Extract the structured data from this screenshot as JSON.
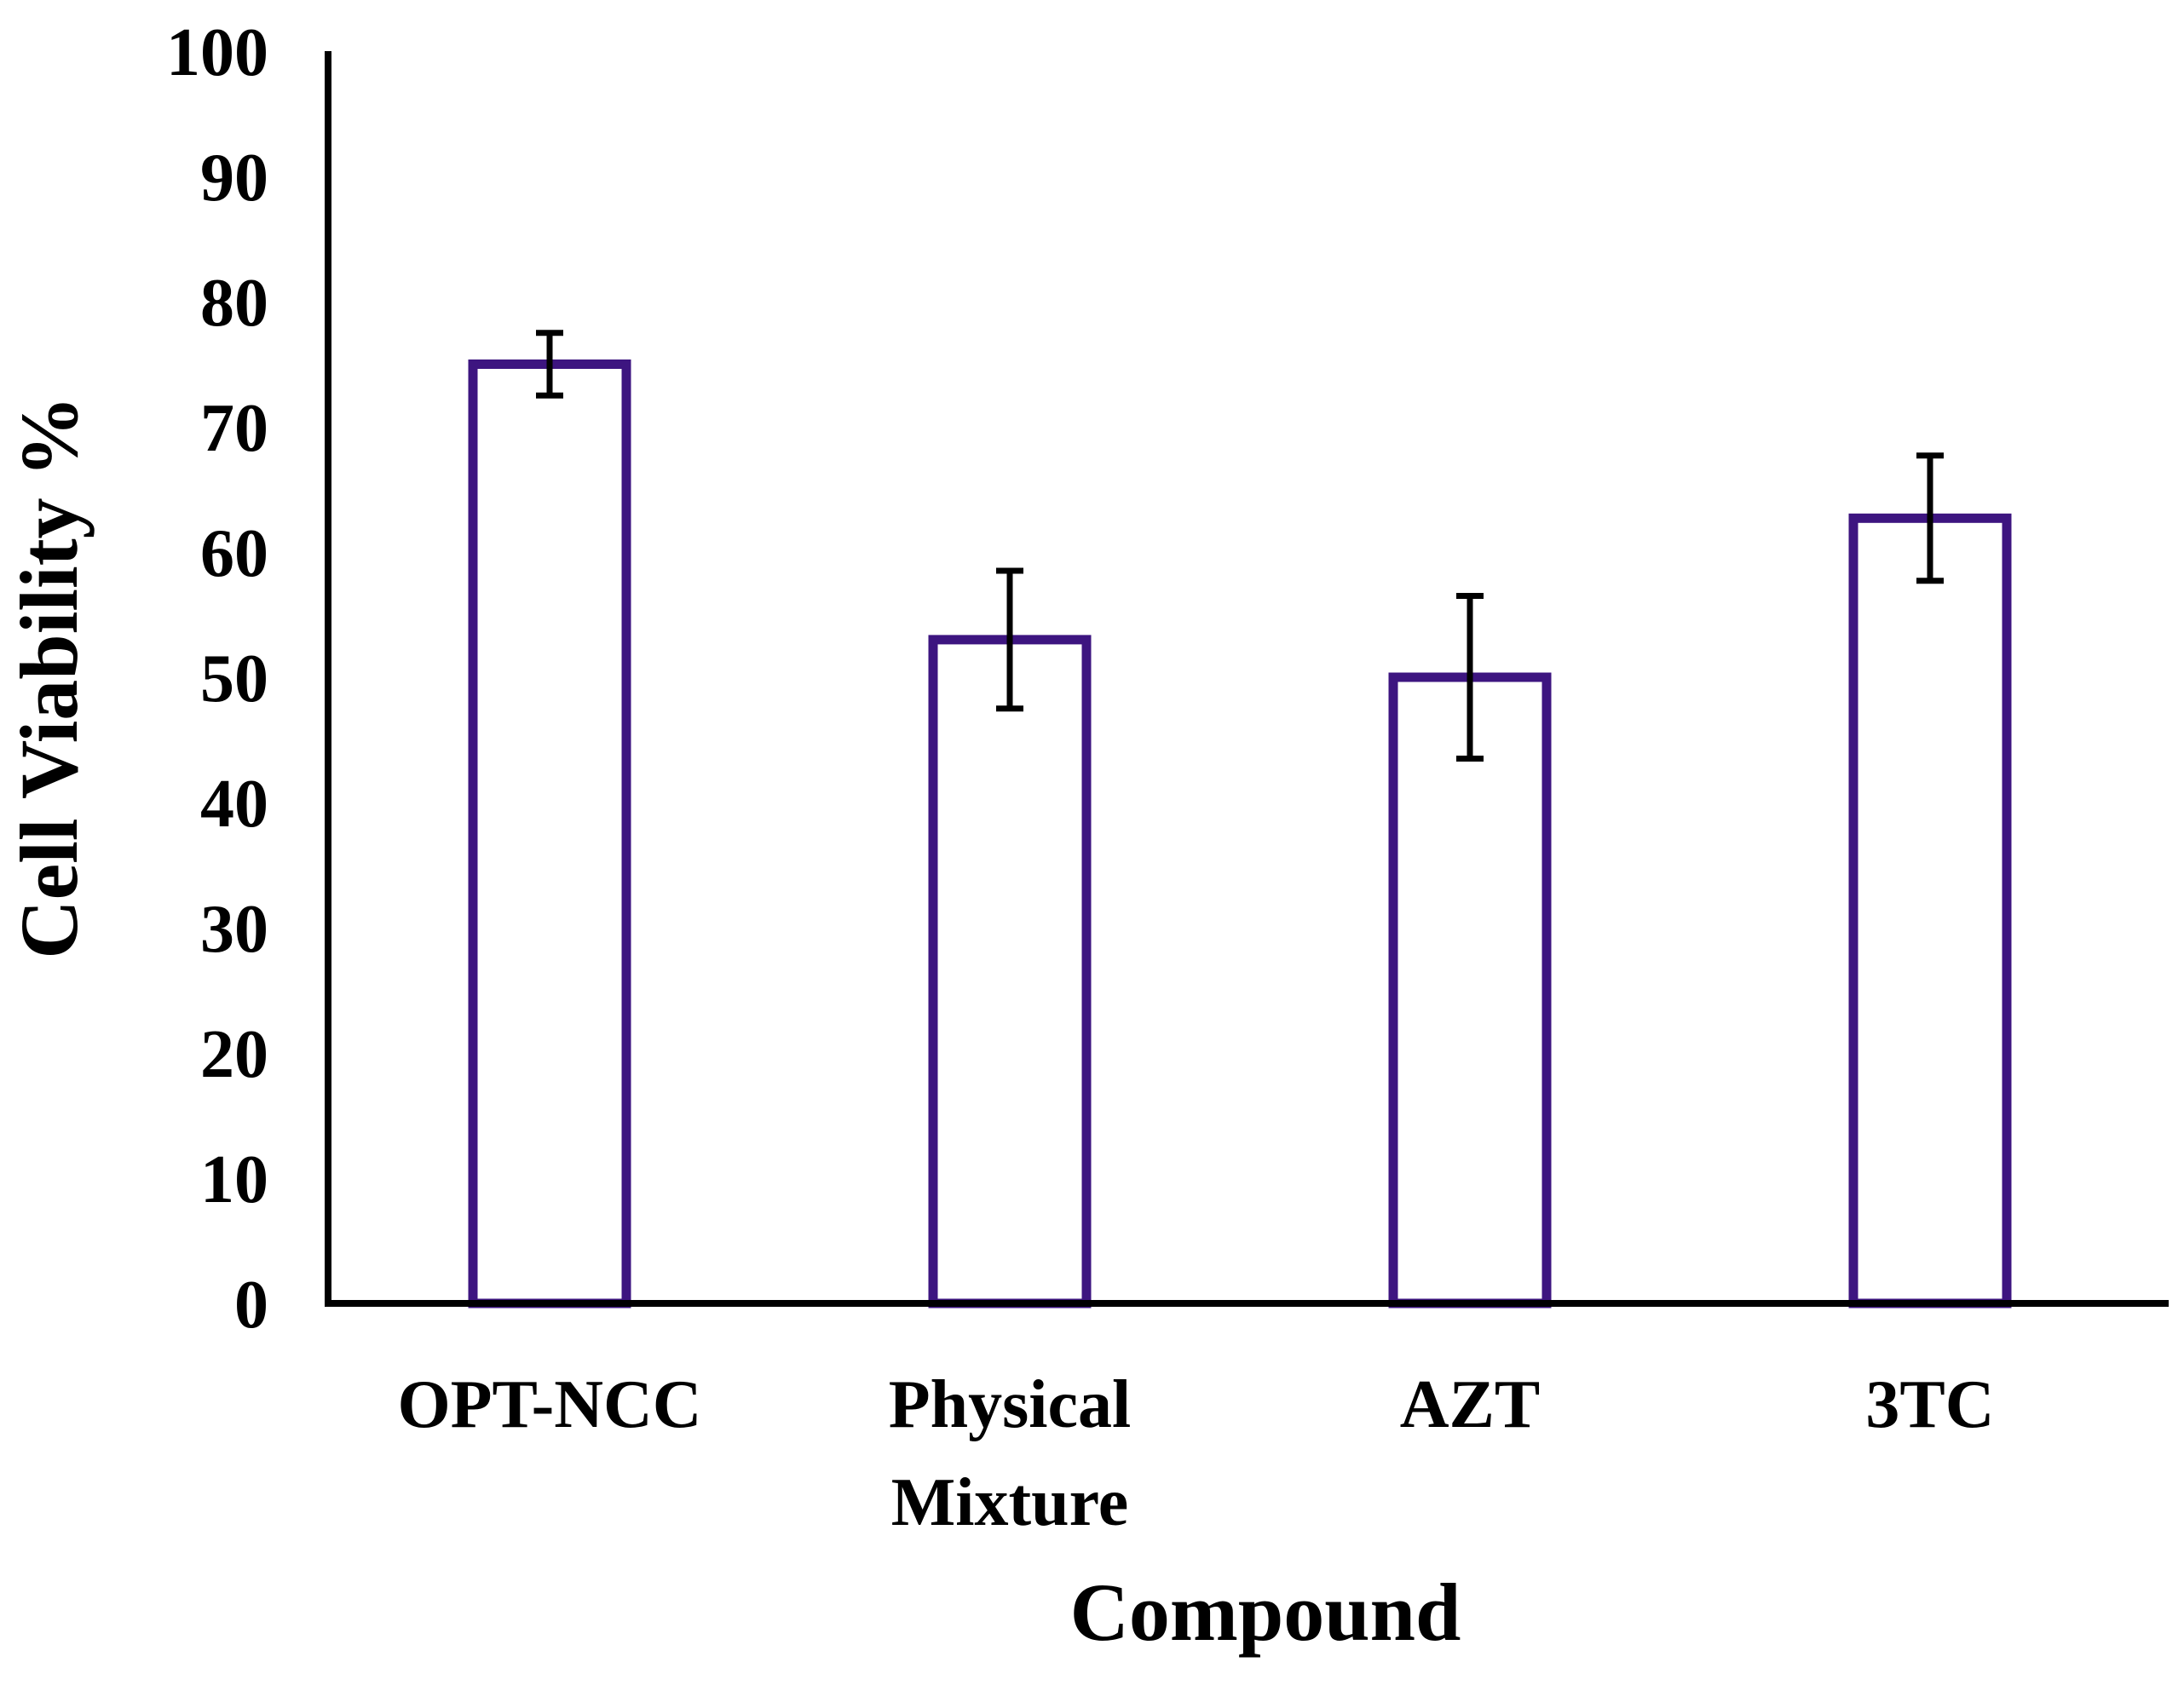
{
  "chart_data": {
    "type": "bar",
    "title": "",
    "xlabel": "Compound",
    "ylabel": "Cell Viability %",
    "ylim": [
      0,
      100
    ],
    "yticks": [
      "0",
      "10",
      "20",
      "30",
      "40",
      "50",
      "60",
      "70",
      "80",
      "90",
      "100"
    ],
    "categories": [
      [
        "OPT-NCC"
      ],
      [
        "Physical",
        "Mixture"
      ],
      [
        "AZT"
      ],
      [
        "3TC"
      ]
    ],
    "series": [
      {
        "values": [
          75.0,
          53.0,
          50.0,
          62.7
        ],
        "error": [
          2.5,
          5.5,
          6.5,
          5.0
        ]
      }
    ],
    "grid": false,
    "legend": "none",
    "colors": {
      "bar_outline": "#3d1580",
      "bar_fill": "#ffffff",
      "axis": "#000000",
      "error_bar": "#000000"
    }
  }
}
